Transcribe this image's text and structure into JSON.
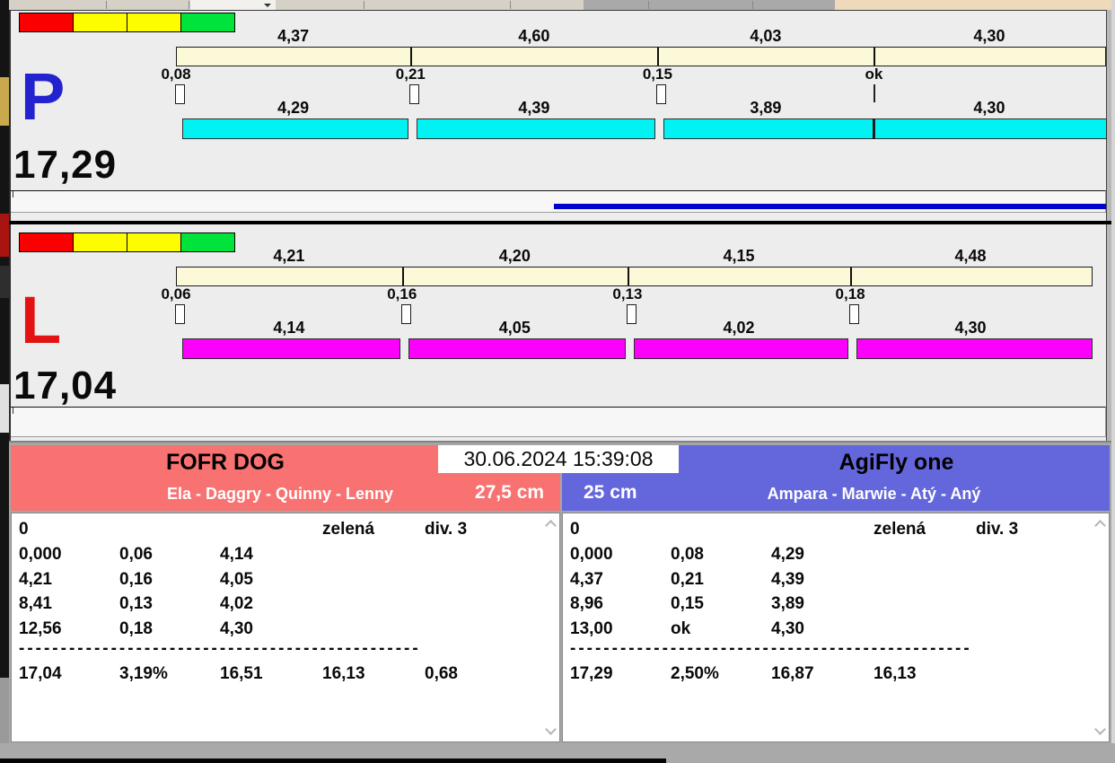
{
  "panels": [
    {
      "letter": "P",
      "letter_color": "#2323cf",
      "bar_color": "#00f2f2",
      "total_label": "17,29",
      "total_seconds": 17.29,
      "lights": [
        "#fb0000",
        "#fdfd00",
        "#fdfd00",
        "#00e33c"
      ],
      "segments": [
        {
          "sector_label": "4,37",
          "sector_seconds": 4.37,
          "changeover_label": "0,08",
          "marker": "box",
          "split_label": "4,29",
          "joined": false
        },
        {
          "sector_label": "4,60",
          "sector_seconds": 4.6,
          "changeover_label": "0,21",
          "marker": "box",
          "split_label": "4,39",
          "joined": false
        },
        {
          "sector_label": "4,03",
          "sector_seconds": 4.03,
          "changeover_label": "0,15",
          "marker": "box",
          "split_label": "3,89",
          "joined": false
        },
        {
          "sector_label": "4,30",
          "sector_seconds": 4.3,
          "changeover_label": "ok",
          "marker": "line",
          "split_label": "4,30",
          "joined": true
        }
      ],
      "progress_line": {
        "visible": true,
        "color": "#0101cc"
      }
    },
    {
      "letter": "L",
      "letter_color": "#e31313",
      "bar_color": "#fb01fb",
      "total_label": "17,04",
      "total_seconds": 17.04,
      "lights": [
        "#fb0000",
        "#fdfd00",
        "#fdfd00",
        "#00e33c"
      ],
      "segments": [
        {
          "sector_label": "4,21",
          "sector_seconds": 4.21,
          "changeover_label": "0,06",
          "marker": "box",
          "split_label": "4,14",
          "joined": false
        },
        {
          "sector_label": "4,20",
          "sector_seconds": 4.2,
          "changeover_label": "0,16",
          "marker": "box",
          "split_label": "4,05",
          "joined": false
        },
        {
          "sector_label": "4,15",
          "sector_seconds": 4.15,
          "changeover_label": "0,13",
          "marker": "box",
          "split_label": "4,02",
          "joined": false
        },
        {
          "sector_label": "4,48",
          "sector_seconds": 4.48,
          "changeover_label": "0,18",
          "marker": "box",
          "split_label": "4,30",
          "joined": false
        }
      ],
      "progress_line": {
        "visible": false,
        "color": "#0101cc"
      }
    }
  ],
  "footer": {
    "datetime": "30.06.2024 15:39:08",
    "teams": [
      {
        "name": "FOFR DOG",
        "members": "Ela - Daggry - Quinny - Lenny",
        "category": "27,5 cm",
        "accent": "#f87272",
        "log": {
          "status_row": [
            "0",
            null,
            null,
            "zelená",
            "div. 3"
          ],
          "rows": [
            [
              "0,000",
              "0,06",
              "4,14"
            ],
            [
              "4,21",
              "0,16",
              "4,05"
            ],
            [
              "8,41",
              "0,13",
              "4,02"
            ],
            [
              "12,56",
              "0,18",
              "4,30"
            ]
          ],
          "separator": "------------------------------------------------",
          "summary": [
            "17,04",
            "3,19%",
            "16,51",
            "16,13",
            "0,68"
          ]
        }
      },
      {
        "name": "AgiFly one",
        "members": "Ampara - Marwie - Atý - Aný",
        "category": "25 cm",
        "accent": "#6467dc",
        "log": {
          "status_row": [
            "0",
            null,
            null,
            "zelená",
            "div. 3"
          ],
          "rows": [
            [
              "0,000",
              "0,08",
              "4,29"
            ],
            [
              "4,37",
              "0,21",
              "4,39"
            ],
            [
              "8,96",
              "0,15",
              "3,89"
            ],
            [
              "13,00",
              "ok",
              "4,30"
            ]
          ],
          "separator": "------------------------------------------------",
          "summary": [
            "17,29",
            "2,50%",
            "16,87",
            "16,13"
          ]
        }
      }
    ]
  }
}
